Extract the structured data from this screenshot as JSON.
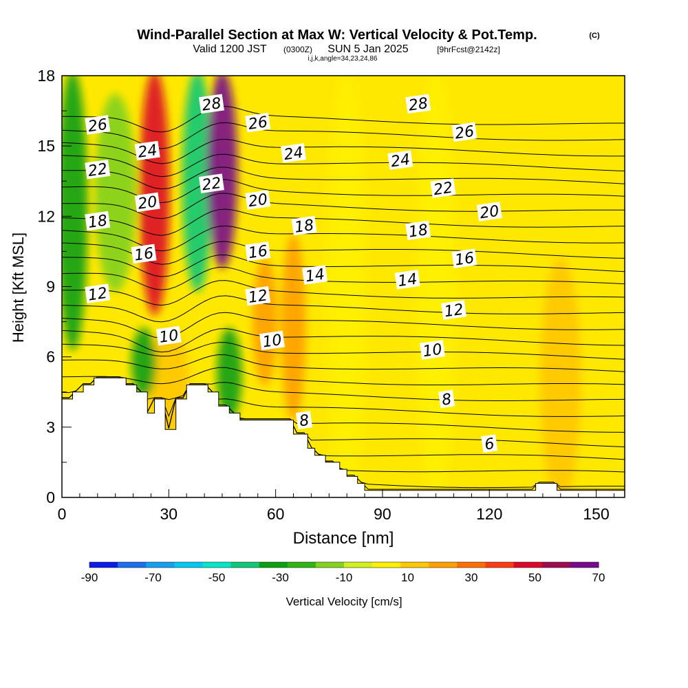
{
  "chart_data": {
    "type": "heatmap",
    "title": "Wind-Parallel Section at Max W: Vertical Velocity & Pot.Temp.",
    "title_mark": "(C)",
    "subtitle_valid": "Valid 1200 JST",
    "subtitle_utc": "(0300Z)",
    "subtitle_date": "SUN 5 Jan 2025",
    "subtitle_fcst": "[9hrFcst@2142z]",
    "subtitle_indices": "i,j,k,angle=34,23,24,86",
    "xlabel": "Distance [nm]",
    "ylabel": "Height [Kft MSL]",
    "xlim": [
      0,
      158
    ],
    "ylim": [
      0,
      18
    ],
    "xticks": [
      "0",
      "30",
      "60",
      "90",
      "120",
      "150"
    ],
    "xtick_values": [
      0,
      30,
      60,
      90,
      120,
      150
    ],
    "yticks": [
      "0",
      "3",
      "6",
      "9",
      "12",
      "15",
      "18"
    ],
    "ytick_values": [
      0,
      3,
      6,
      9,
      12,
      15,
      18
    ],
    "colorbar": {
      "label": "Vertical Velocity [cm/s]",
      "ticks": [
        "-90",
        "-70",
        "-50",
        "-30",
        "-10",
        "10",
        "30",
        "50",
        "70"
      ],
      "tick_values": [
        -90,
        -70,
        -50,
        -30,
        -10,
        10,
        30,
        50,
        70
      ],
      "range": [
        -90,
        70
      ],
      "colors": [
        "#0a1ee6",
        "#1e6ef0",
        "#14a0f0",
        "#00c8f0",
        "#00e6c8",
        "#10c878",
        "#0aa014",
        "#32b414",
        "#82d21e",
        "#d2f01e",
        "#fff000",
        "#ffc800",
        "#ffa000",
        "#ff6e00",
        "#ff3c14",
        "#dc0a28",
        "#a00a50",
        "#780a8c"
      ]
    },
    "velocity_field": [
      {
        "x": 3,
        "h_bottom": 6.5,
        "h_top": 18,
        "w": -35
      },
      {
        "x": 15,
        "h_bottom": 9,
        "h_top": 17,
        "w": -12
      },
      {
        "x": 26,
        "h_bottom": 8,
        "h_top": 18,
        "w": 45
      },
      {
        "x": 38,
        "h_bottom": 9,
        "h_top": 18,
        "w": -40
      },
      {
        "x": 45,
        "h_bottom": 10,
        "h_top": 18,
        "w": 62
      },
      {
        "x": 30,
        "h_bottom": 3,
        "h_top": 7,
        "w": 15
      },
      {
        "x": 23,
        "h_bottom": 4.5,
        "h_top": 7,
        "w": -30
      },
      {
        "x": 47,
        "h_bottom": 3.5,
        "h_top": 7,
        "w": -28
      },
      {
        "x": 57,
        "h_bottom": 5,
        "h_top": 10,
        "w": 22
      },
      {
        "x": 65,
        "h_bottom": 3.5,
        "h_top": 11,
        "w": 25
      },
      {
        "x": 80,
        "h_bottom": 0,
        "h_top": 18,
        "w": 5
      },
      {
        "x": 105,
        "h_bottom": 0,
        "h_top": 18,
        "w": 0
      },
      {
        "x": 140,
        "h_bottom": 0,
        "h_top": 10,
        "w": 12
      }
    ],
    "terrain": [
      [
        0,
        4.2
      ],
      [
        3,
        4.2
      ],
      [
        3,
        4.5
      ],
      [
        6,
        4.5
      ],
      [
        6,
        4.8
      ],
      [
        9,
        4.8
      ],
      [
        9,
        5.1
      ],
      [
        18,
        5.1
      ],
      [
        18,
        4.8
      ],
      [
        21,
        4.8
      ],
      [
        21,
        4.5
      ],
      [
        24,
        4.5
      ],
      [
        24,
        3.6
      ],
      [
        26,
        3.6
      ],
      [
        26,
        4.2
      ],
      [
        29,
        4.2
      ],
      [
        29,
        2.9
      ],
      [
        32,
        2.9
      ],
      [
        32,
        4.2
      ],
      [
        35,
        4.2
      ],
      [
        35,
        4.8
      ],
      [
        41,
        4.8
      ],
      [
        41,
        4.5
      ],
      [
        44,
        4.5
      ],
      [
        44,
        3.9
      ],
      [
        47,
        3.9
      ],
      [
        47,
        3.6
      ],
      [
        50,
        3.6
      ],
      [
        50,
        3.3
      ],
      [
        65,
        3.3
      ],
      [
        65,
        2.7
      ],
      [
        69,
        2.7
      ],
      [
        69,
        2.1
      ],
      [
        71,
        2.1
      ],
      [
        71,
        1.8
      ],
      [
        74,
        1.8
      ],
      [
        74,
        1.5
      ],
      [
        78,
        1.5
      ],
      [
        78,
        1.2
      ],
      [
        80,
        1.2
      ],
      [
        80,
        0.9
      ],
      [
        83,
        0.9
      ],
      [
        83,
        0.6
      ],
      [
        85,
        0.6
      ],
      [
        85,
        0.3
      ],
      [
        133,
        0.3
      ],
      [
        133,
        0.6
      ],
      [
        139,
        0.6
      ],
      [
        139,
        0.3
      ],
      [
        158,
        0.3
      ]
    ],
    "theta_contours": {
      "levels": [
        4,
        5,
        6,
        7,
        8,
        9,
        10,
        11,
        12,
        13,
        14,
        15,
        16,
        17,
        18,
        19,
        20,
        21,
        22,
        23,
        24,
        25,
        26,
        27,
        28,
        29,
        30
      ],
      "labels": [
        {
          "text": "26",
          "x": 10,
          "h": 15.9
        },
        {
          "text": "24",
          "x": 24,
          "h": 14.8
        },
        {
          "text": "22",
          "x": 10,
          "h": 14.0
        },
        {
          "text": "20",
          "x": 24,
          "h": 12.6
        },
        {
          "text": "18",
          "x": 10,
          "h": 11.8
        },
        {
          "text": "16",
          "x": 23,
          "h": 10.4
        },
        {
          "text": "12",
          "x": 10,
          "h": 8.7
        },
        {
          "text": "10",
          "x": 30,
          "h": 6.9
        },
        {
          "text": "28",
          "x": 42,
          "h": 16.8
        },
        {
          "text": "26",
          "x": 55,
          "h": 16.0
        },
        {
          "text": "22",
          "x": 42,
          "h": 13.4
        },
        {
          "text": "24",
          "x": 65,
          "h": 14.7
        },
        {
          "text": "20",
          "x": 55,
          "h": 12.7
        },
        {
          "text": "18",
          "x": 68,
          "h": 11.6
        },
        {
          "text": "16",
          "x": 55,
          "h": 10.5
        },
        {
          "text": "14",
          "x": 71,
          "h": 9.5
        },
        {
          "text": "12",
          "x": 55,
          "h": 8.6
        },
        {
          "text": "10",
          "x": 59,
          "h": 6.7
        },
        {
          "text": "8",
          "x": 68,
          "h": 3.3
        },
        {
          "text": "28",
          "x": 100,
          "h": 16.8
        },
        {
          "text": "26",
          "x": 113,
          "h": 15.6
        },
        {
          "text": "24",
          "x": 95,
          "h": 14.4
        },
        {
          "text": "22",
          "x": 107,
          "h": 13.2
        },
        {
          "text": "20",
          "x": 120,
          "h": 12.2
        },
        {
          "text": "18",
          "x": 100,
          "h": 11.4
        },
        {
          "text": "16",
          "x": 113,
          "h": 10.2
        },
        {
          "text": "14",
          "x": 97,
          "h": 9.3
        },
        {
          "text": "12",
          "x": 110,
          "h": 8.0
        },
        {
          "text": "10",
          "x": 104,
          "h": 6.3
        },
        {
          "text": "8",
          "x": 108,
          "h": 4.2
        },
        {
          "text": "6",
          "x": 120,
          "h": 2.3
        }
      ]
    },
    "grid": false
  }
}
